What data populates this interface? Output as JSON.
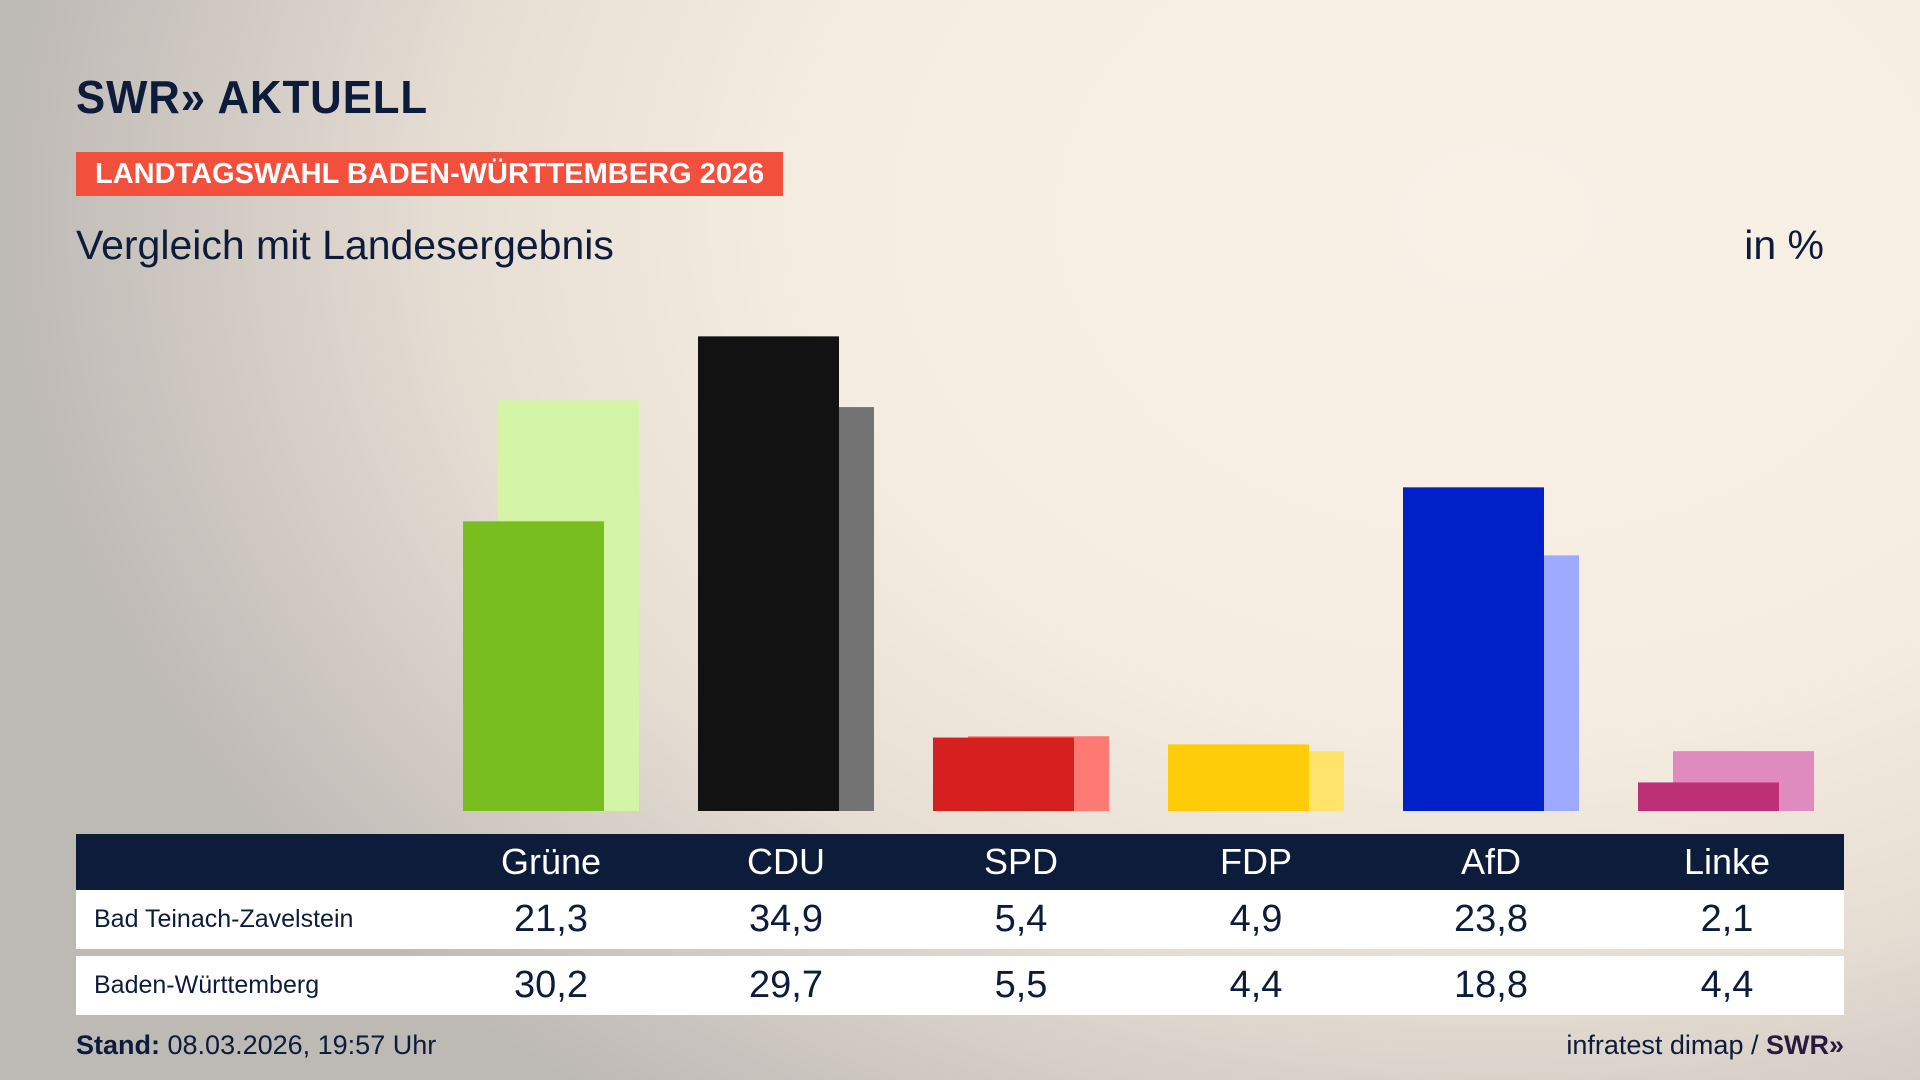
{
  "header": {
    "logo": "SWR» AKTUELL",
    "banner": "LANDTAGSWAHL BADEN-WÜRTTEMBERG 2026",
    "subtitle": "Vergleich mit Landesergebnis",
    "unit": "in %"
  },
  "chart_data": {
    "type": "bar",
    "title": "Vergleich mit Landesergebnis",
    "ylabel": "in %",
    "categories": [
      "Grüne",
      "CDU",
      "SPD",
      "FDP",
      "AfD",
      "Linke"
    ],
    "series": [
      {
        "name": "Bad Teinach-Zavelstein",
        "values": [
          21.3,
          34.9,
          5.4,
          4.9,
          23.8,
          2.1
        ],
        "colors": [
          "#78be1e",
          "#121212",
          "#d6201f",
          "#ffcc0a",
          "#0021c8",
          "#be3075"
        ]
      },
      {
        "name": "Baden-Württemberg",
        "values": [
          30.2,
          29.7,
          5.5,
          4.4,
          18.8,
          4.4
        ],
        "colors": [
          "#d4f5a8",
          "#737373",
          "#ff7a73",
          "#ffe36b",
          "#9daaff",
          "#df8bbf"
        ]
      }
    ],
    "ylim": [
      0,
      36
    ],
    "grid": false
  },
  "table": {
    "headers": [
      "Grüne",
      "CDU",
      "SPD",
      "FDP",
      "AfD",
      "Linke"
    ],
    "rows": [
      {
        "label": "Bad Teinach-Zavelstein",
        "values": [
          "21,3",
          "34,9",
          "5,4",
          "4,9",
          "23,8",
          "2,1"
        ]
      },
      {
        "label": "Baden-Württemberg",
        "values": [
          "30,2",
          "29,7",
          "5,5",
          "4,4",
          "18,8",
          "4,4"
        ]
      }
    ]
  },
  "footer": {
    "stand_label": "Stand:",
    "stand_value": "08.03.2026, 19:57 Uhr",
    "source": "infratest dimap /",
    "source_logo": "SWR»"
  }
}
